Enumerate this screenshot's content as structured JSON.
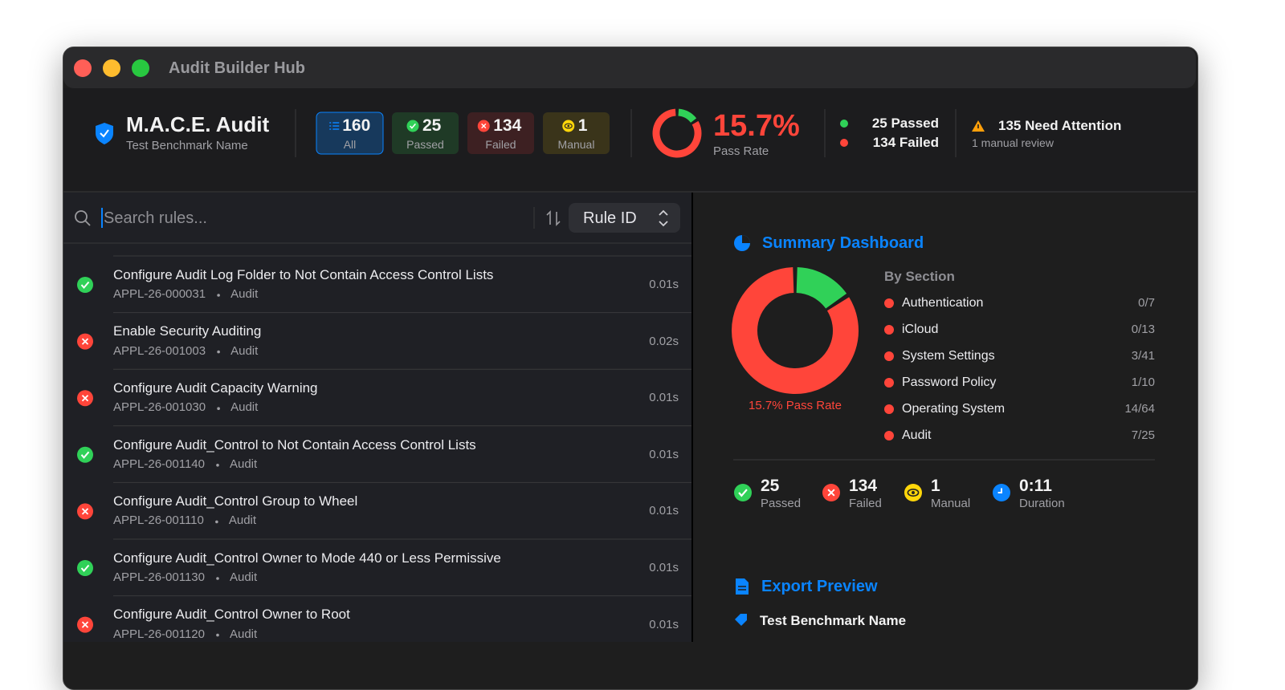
{
  "window": {
    "title": "Audit Builder Hub"
  },
  "header": {
    "title": "M.A.C.E. Audit",
    "subtitle": "Test Benchmark Name",
    "filters": [
      {
        "count": 160,
        "label": "All"
      },
      {
        "count": 25,
        "label": "Passed"
      },
      {
        "count": 134,
        "label": "Failed"
      },
      {
        "count": 1,
        "label": "Manual"
      }
    ],
    "pass_rate": {
      "value": "15.7%",
      "label": "Pass Rate"
    },
    "passed_text": "25 Passed",
    "failed_text": "134 Failed",
    "attention": {
      "title": "135 Need Attention",
      "subtitle": "1 manual review"
    }
  },
  "search": {
    "placeholder": "Search rules...",
    "sort": "Rule ID"
  },
  "rules": [
    {
      "status": "passed",
      "title": "Configure Audit Log Folder to Not Contain Access Control Lists",
      "id": "APPL-26-000031",
      "section": "Audit",
      "duration": "0.01s"
    },
    {
      "status": "failed",
      "title": "Enable Security Auditing",
      "id": "APPL-26-001003",
      "section": "Audit",
      "duration": "0.02s"
    },
    {
      "status": "failed",
      "title": "Configure Audit Capacity Warning",
      "id": "APPL-26-001030",
      "section": "Audit",
      "duration": "0.01s"
    },
    {
      "status": "passed",
      "title": "Configure Audit_Control to Not Contain Access Control Lists",
      "id": "APPL-26-001140",
      "section": "Audit",
      "duration": "0.01s"
    },
    {
      "status": "failed",
      "title": "Configure Audit_Control Group to Wheel",
      "id": "APPL-26-001110",
      "section": "Audit",
      "duration": "0.01s"
    },
    {
      "status": "passed",
      "title": "Configure Audit_Control Owner to Mode 440 or Less Permissive",
      "id": "APPL-26-001130",
      "section": "Audit",
      "duration": "0.01s"
    },
    {
      "status": "failed",
      "title": "Configure Audit_Control Owner to Root",
      "id": "APPL-26-001120",
      "section": "Audit",
      "duration": "0.01s"
    }
  ],
  "summary": {
    "title": "Summary Dashboard",
    "pass_rate_label": "15.7% Pass Rate",
    "by_section_title": "By Section",
    "sections": [
      {
        "name": "Authentication",
        "score": "0/7"
      },
      {
        "name": "iCloud",
        "score": "0/13"
      },
      {
        "name": "System Settings",
        "score": "3/41"
      },
      {
        "name": "Password Policy",
        "score": "1/10"
      },
      {
        "name": "Operating System",
        "score": "14/64"
      },
      {
        "name": "Audit",
        "score": "7/25"
      }
    ],
    "stats": [
      {
        "value": "25",
        "label": "Passed"
      },
      {
        "value": "134",
        "label": "Failed"
      },
      {
        "value": "1",
        "label": "Manual"
      },
      {
        "value": "0:11",
        "label": "Duration"
      }
    ]
  },
  "export": {
    "title": "Export Preview",
    "name": "Test Benchmark Name"
  }
}
